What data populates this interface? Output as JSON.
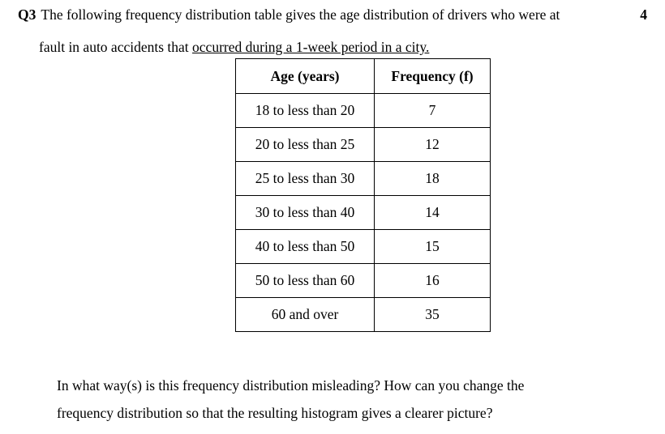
{
  "question": {
    "number": "Q3",
    "line1": "The following frequency distribution table gives the age distribution of drivers who were at",
    "marks": "4",
    "line2_plain": "fault in auto accidents that ",
    "line2_underlined": "occurred during a 1-week period in a city."
  },
  "table": {
    "headers": {
      "age": "Age (years)",
      "freq": "Frequency (f)"
    },
    "rows": [
      {
        "age": "18 to less than 20",
        "freq": "7"
      },
      {
        "age": "20 to less than 25",
        "freq": "12"
      },
      {
        "age": "25 to less than 30",
        "freq": "18"
      },
      {
        "age": "30 to less than 40",
        "freq": "14"
      },
      {
        "age": "40 to less than 50",
        "freq": "15"
      },
      {
        "age": "50 to less than 60",
        "freq": "16"
      },
      {
        "age": "60 and over",
        "freq": "35"
      }
    ]
  },
  "footer": {
    "line1": "In what way(s) is this frequency distribution misleading? How can you change the",
    "line2": "frequency  distribution so that the resulting histogram gives a clearer picture?"
  }
}
